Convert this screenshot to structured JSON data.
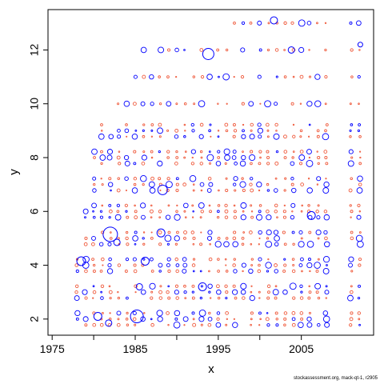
{
  "chart_data": {
    "type": "scatter",
    "title": "",
    "xlabel": "x",
    "ylabel": "y",
    "xlim": [
      1974.5,
      2013.7
    ],
    "ylim": [
      1.4,
      13.5
    ],
    "xticks": [
      1975,
      1985,
      1995,
      2005
    ],
    "yticks": [
      2,
      4,
      6,
      8,
      10,
      12
    ],
    "grid": false,
    "legend": "none",
    "encoding": "bubble area proportional to residual magnitude; color indicates sign",
    "series": [
      {
        "name": "",
        "color": "#ef5a3c",
        "points": []
      },
      {
        "name": "",
        "color": "#0000ff",
        "points": [
          {
            "x": 1982,
            "y": 5.15,
            "r": 9
          },
          {
            "x": 1978.5,
            "y": 4.15,
            "r": 5.5
          },
          {
            "x": 1985.2,
            "y": 2.1,
            "r": 8
          },
          {
            "x": 1980.5,
            "y": 2.1,
            "r": 5
          },
          {
            "x": 1988.3,
            "y": 6.8,
            "r": 6
          },
          {
            "x": 1993.8,
            "y": 11.85,
            "r": 7
          },
          {
            "x": 2001.7,
            "y": 13.1,
            "r": 4.5
          },
          {
            "x": 2006.2,
            "y": 5.85,
            "r": 5
          },
          {
            "x": 1988.1,
            "y": 5.2,
            "r": 5
          },
          {
            "x": 1986.2,
            "y": 4.15,
            "r": 5
          },
          {
            "x": 1993.1,
            "y": 3.2,
            "r": 5
          },
          {
            "x": 2003.8,
            "y": 12.0,
            "r": 4
          },
          {
            "x": 2012.1,
            "y": 12.2,
            "r": 3
          },
          {
            "x": 1981.8,
            "y": 1.85,
            "r": 4
          },
          {
            "x": 1985.5,
            "y": 3.2,
            "r": 4
          },
          {
            "x": 1982.8,
            "y": 4.85,
            "r": 4
          }
        ]
      }
    ]
  },
  "credit": "stockassessment.org, mack-qt-1, r2905"
}
